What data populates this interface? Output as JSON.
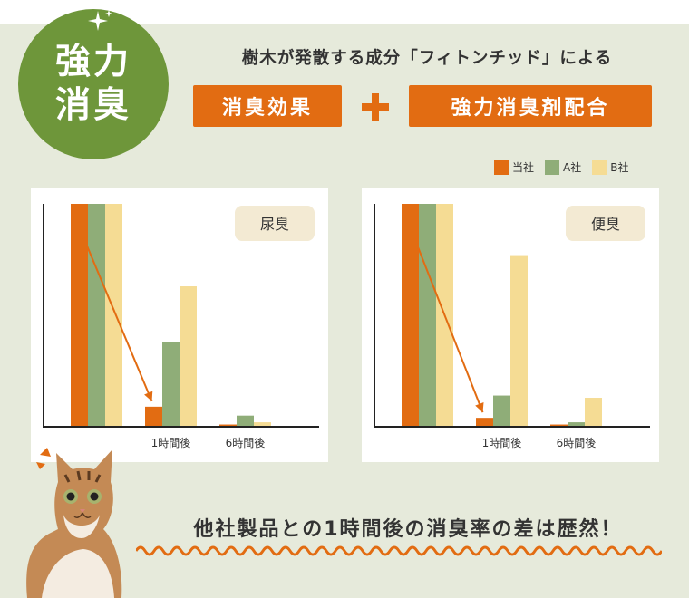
{
  "badge": {
    "line1": "強力",
    "line2": "消臭"
  },
  "subtitle": "樹木が発散する成分「フィトンチッド」による",
  "tags": {
    "left": "消臭効果",
    "right": "強力消臭剤配合"
  },
  "colors": {
    "ours": "#e26c12",
    "a": "#8fad78",
    "b": "#f5dc94",
    "badge": "#6e963a"
  },
  "summary": "他社製品との1時間後の消臭率の差は歴然！",
  "chart_data": [
    {
      "type": "bar",
      "title": "尿臭",
      "categories": [
        "",
        "1時間後",
        "6時間後"
      ],
      "series": [
        {
          "name": "当社",
          "values": [
            100,
            9,
            1
          ]
        },
        {
          "name": "A社",
          "values": [
            100,
            38,
            5
          ]
        },
        {
          "name": "B社",
          "values": [
            100,
            63,
            2
          ]
        }
      ],
      "ylim": [
        0,
        100
      ],
      "legend": "top-right"
    },
    {
      "type": "bar",
      "title": "便臭",
      "categories": [
        "",
        "1時間後",
        "6時間後"
      ],
      "series": [
        {
          "name": "当社",
          "values": [
            100,
            4,
            1
          ]
        },
        {
          "name": "A社",
          "values": [
            100,
            14,
            2
          ]
        },
        {
          "name": "B社",
          "values": [
            100,
            77,
            13
          ]
        }
      ],
      "ylim": [
        0,
        100
      ],
      "legend": "top-right"
    }
  ]
}
